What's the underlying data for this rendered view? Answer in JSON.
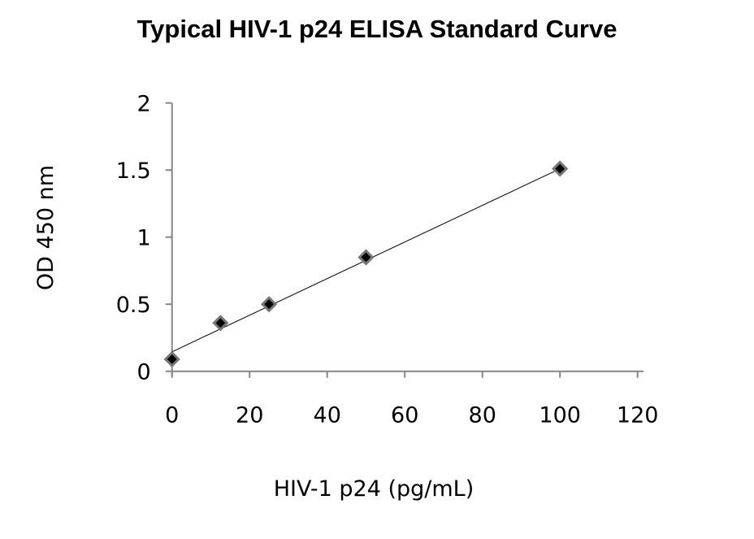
{
  "chart_data": {
    "type": "scatter",
    "title": "Typical HIV-1 p24 ELISA Standard Curve",
    "xlabel": "HIV-1 p24 (pg/mL)",
    "ylabel": "OD 450 nm",
    "xlim": [
      0,
      120
    ],
    "ylim": [
      0,
      2
    ],
    "xticks": [
      "0",
      "20",
      "40",
      "60",
      "80",
      "100",
      "120"
    ],
    "yticks": [
      "0",
      "0.5",
      "1",
      "1.5",
      "2"
    ],
    "grid": false,
    "legend": "none",
    "series": [
      {
        "x": [
          0,
          12.5,
          25,
          50,
          100
        ],
        "y": [
          0.09,
          0.36,
          0.5,
          0.85,
          1.51
        ],
        "marker": "diamond",
        "color": "#000000"
      }
    ],
    "trendline": {
      "type": "linear",
      "intercept": 0.145,
      "slope": 0.01365,
      "color": "#000000"
    }
  }
}
